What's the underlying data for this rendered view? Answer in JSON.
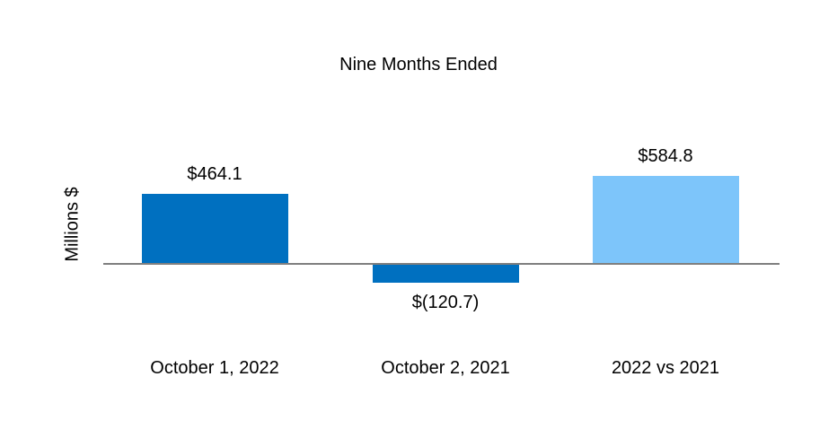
{
  "chart_data": {
    "type": "bar",
    "title": "Nine Months Ended",
    "ylabel": "Millions $",
    "xlabel": "",
    "categories": [
      "October 1, 2022",
      "October 2, 2021",
      "2022 vs 2021"
    ],
    "values": [
      464.1,
      -120.7,
      584.8
    ],
    "value_labels": [
      "$464.1",
      "$(120.7)",
      "$584.8"
    ],
    "bar_colors": [
      "#0070C0",
      "#0070C0",
      "#7DC5FA"
    ],
    "axis_line_color": "#7F7F7F",
    "text_color": "#000000",
    "background_color": "#FFFFFF",
    "ylim": [
      -150,
      650
    ],
    "grid": "off",
    "legend": "none",
    "value_label_position": "outside-end"
  }
}
